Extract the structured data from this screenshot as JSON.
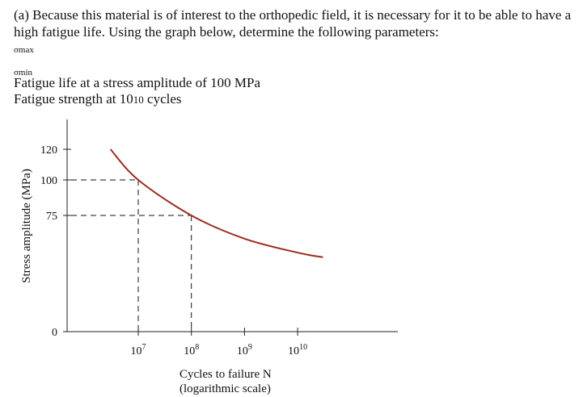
{
  "question": {
    "intro": "(a) Because this material is of interest to the orthopedic field, it is necessary for it to be able to have a high fatigue life. Using the graph below, determine the following parameters:",
    "sigma_max": "σmax",
    "sigma_min": "σmin",
    "line_fatigue_life": "Fatigue life at a stress amplitude of 100 MPa",
    "line_strength_prefix": "Fatigue strength at 10",
    "line_strength_exp": "10",
    "line_strength_suffix": " cycles"
  },
  "chart_data": {
    "type": "line",
    "ylabel": "Stress amplitude (MPa)",
    "xlabel": "Cycles to failure N",
    "xlabel_note": "(logarithmic scale)",
    "x_scale": "log",
    "yticks": [
      "0",
      "75",
      "100",
      "120"
    ],
    "xticks": [
      {
        "base": "10",
        "exp": "7",
        "value": 10000000
      },
      {
        "base": "10",
        "exp": "8",
        "value": 100000000
      },
      {
        "base": "10",
        "exp": "9",
        "value": 1000000000
      },
      {
        "base": "10",
        "exp": "10",
        "value": 10000000000
      }
    ],
    "series": [
      {
        "color": "#9b2d1f",
        "x": [
          3000000,
          10000000,
          100000000,
          1000000000,
          10000000000,
          30000000000
        ],
        "y": [
          120,
          100,
          75,
          60,
          51,
          48
        ]
      }
    ],
    "guides": [
      {
        "x": 10000000,
        "y": 100
      },
      {
        "x": 100000000,
        "y": 75
      }
    ],
    "axis_color": "#222222",
    "guide_color": "#111111"
  }
}
